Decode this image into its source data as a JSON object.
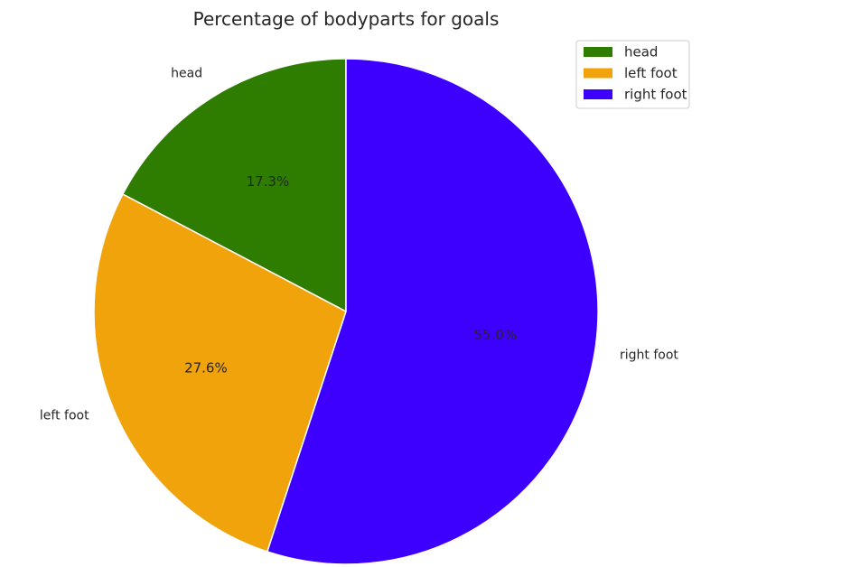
{
  "chart_data": {
    "type": "pie",
    "title": "Percentage of bodyparts for goals",
    "categories": [
      "head",
      "left foot",
      "right foot"
    ],
    "values": [
      17.3,
      27.6,
      55.0
    ],
    "value_labels": [
      "17.3%",
      "27.6%",
      "55.0%"
    ],
    "colors": [
      "#2e7d00",
      "#f0a30a",
      "#3d00ff"
    ],
    "start_angle": 90,
    "direction": "counterclockwise",
    "legend": {
      "position": "top-right",
      "entries": [
        "head",
        "left foot",
        "right foot"
      ]
    }
  }
}
